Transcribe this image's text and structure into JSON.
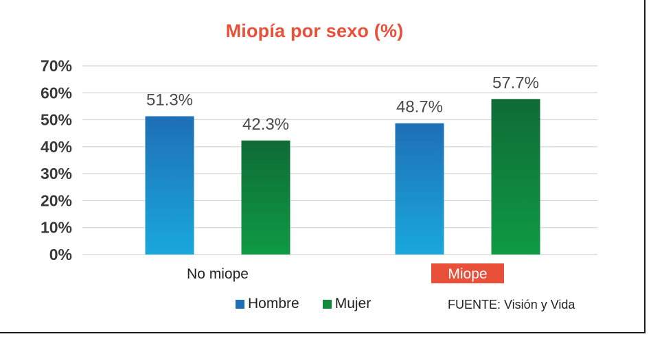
{
  "chart_data": {
    "type": "bar",
    "title": "Miopía por sexo (%)",
    "categories": [
      "No miope",
      "Miope"
    ],
    "highlighted_category": "Miope",
    "series": [
      {
        "name": "Hombre",
        "values": [
          51.3,
          48.7
        ],
        "labels": [
          "51.3%",
          "48.7%"
        ],
        "color": "#1f6fb5"
      },
      {
        "name": "Mujer",
        "values": [
          42.3,
          57.7
        ],
        "labels": [
          "42.3%",
          "57.7%"
        ],
        "color": "#118a3c"
      }
    ],
    "yticks": [
      "0%",
      "10%",
      "20%",
      "30%",
      "40%",
      "50%",
      "60%",
      "70%"
    ],
    "ylim": [
      0,
      70
    ],
    "grid": true,
    "legend_position": "bottom"
  },
  "colors": {
    "title": "#e8503a",
    "highlight": "#e8503a",
    "hombre_top": "#1f6fb5",
    "hombre_bottom": "#1aa8dc",
    "mujer_top": "#0f6b36",
    "mujer_bottom": "#0f9a44",
    "grid": "#d4d4d4"
  },
  "source": "FUENTE: Visión y Vida"
}
